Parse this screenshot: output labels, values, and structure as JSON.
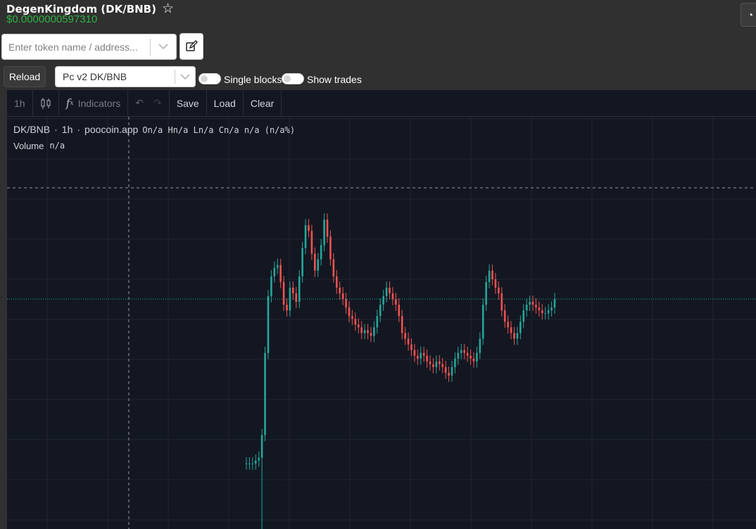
{
  "header": {
    "title": "DegenKingdom (DK/BNB)",
    "price": "$0.0000000597310"
  },
  "search": {
    "placeholder": "Enter token name / address..."
  },
  "controls": {
    "reload_label": "Reload",
    "pair_value": "Pc v2 DK/BNB",
    "single_blocks_label": "Single blocks",
    "show_trades_label": "Show trades"
  },
  "toolbar": {
    "interval": "1h",
    "indicators_label": "Indicators",
    "save_label": "Save",
    "load_label": "Load",
    "clear_label": "Clear"
  },
  "legend": {
    "symbol": "DK/BNB",
    "dot1": "·",
    "interval": "1h",
    "dot2": "·",
    "source": "poocoin.app",
    "ohlc": "On/a Hn/a Ln/a Cn/a n/a (n/a%)",
    "volume_label": "Volume",
    "volume_value": "n/a"
  },
  "colors": {
    "up": "#26a69a",
    "down": "#ef5350",
    "background": "#131722",
    "grid": "#1f2431",
    "price_green": "#2fb344"
  },
  "chart_data": {
    "type": "line",
    "interval": "1h",
    "symbol": "DK/BNB",
    "note_values": "price relative level 0..100 (no axis labels visible)",
    "closes": [
      6,
      6,
      6,
      7,
      8,
      16,
      45,
      65,
      72,
      75,
      76,
      70,
      62,
      60,
      68,
      66,
      63,
      72,
      82,
      90,
      88,
      80,
      74,
      78,
      83,
      92,
      86,
      78,
      72,
      68,
      66,
      64,
      61,
      58,
      57,
      55,
      54,
      52,
      53,
      52,
      51,
      54,
      58,
      62,
      65,
      68,
      66,
      64,
      62,
      58,
      52,
      50,
      48,
      46,
      44,
      43,
      45,
      44,
      42,
      41,
      40,
      42,
      41,
      40,
      38,
      37,
      40,
      43,
      45,
      46,
      45,
      44,
      43,
      42,
      45,
      50,
      62,
      70,
      74,
      71,
      68,
      66,
      60,
      56,
      54,
      52,
      50,
      52,
      56,
      60,
      62,
      63,
      62,
      61,
      60,
      59,
      59,
      60,
      61,
      64
    ]
  }
}
